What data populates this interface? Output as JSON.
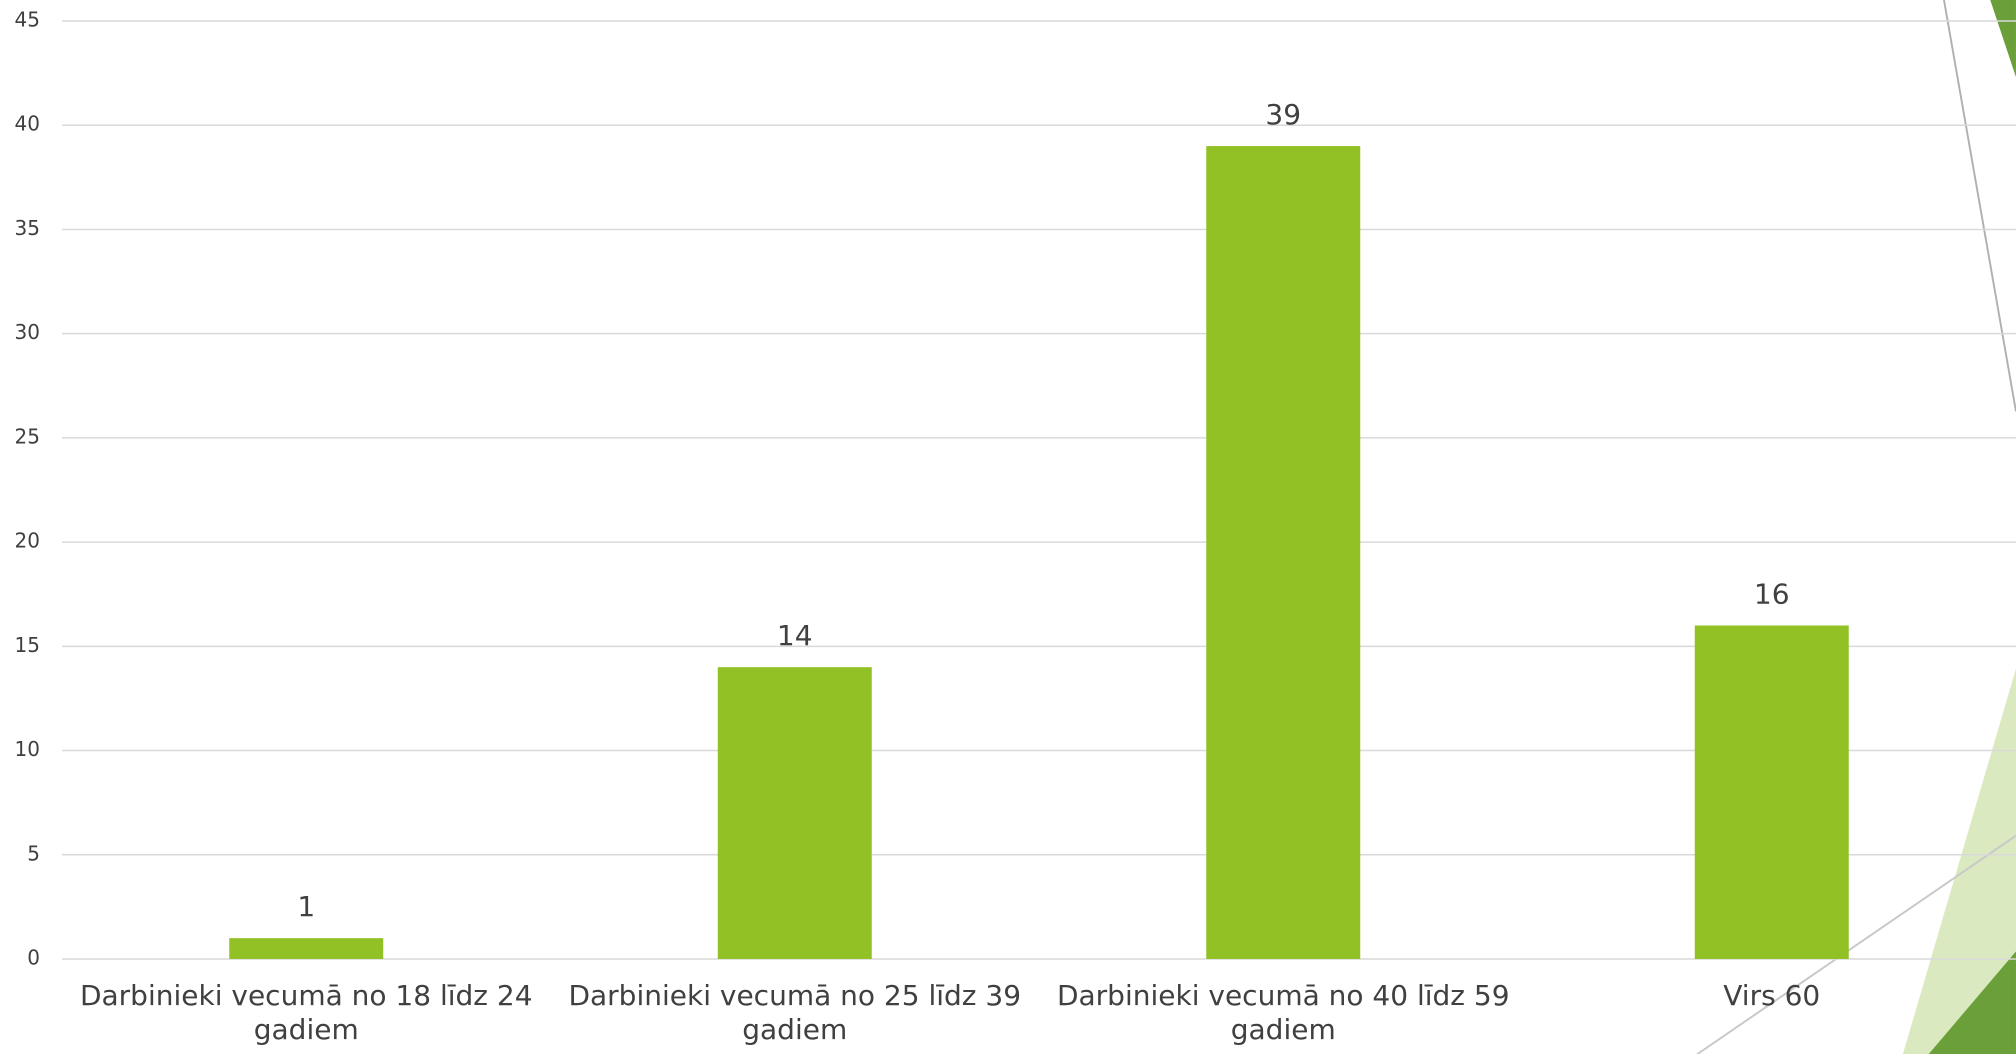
{
  "chart_data": {
    "type": "bar",
    "categories": [
      "Darbinieki vecumā no 18 līdz 24 gadiem",
      "Darbinieki vecumā no 25 līdz 39 gadiem",
      "Darbinieki vecumā no 40 līdz 59 gadiem",
      "Virs 60"
    ],
    "values": [
      1,
      14,
      39,
      16
    ],
    "color": "#92c126",
    "ylim": [
      0,
      45
    ],
    "yticks": [
      0,
      5,
      10,
      15,
      20,
      25,
      30,
      35,
      40,
      45
    ],
    "grid": true
  }
}
